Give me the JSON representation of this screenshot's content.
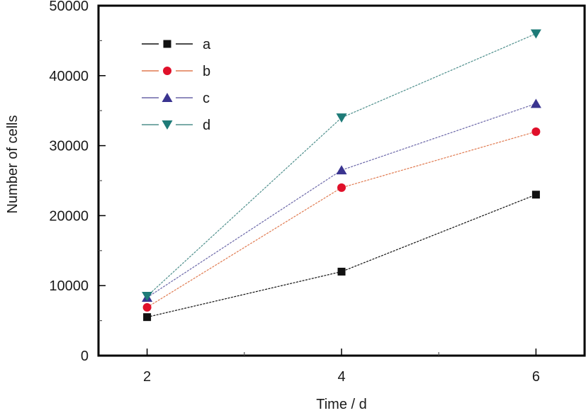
{
  "chart_data": {
    "type": "line",
    "title": "",
    "xlabel": "Time / d",
    "ylabel": "Number of cells",
    "x": [
      2,
      4,
      6
    ],
    "xlim": [
      1.5,
      6.5
    ],
    "ylim": [
      0,
      50000
    ],
    "x_ticks": [
      2,
      4,
      6
    ],
    "x_tick_labels": [
      "2",
      "4",
      "6"
    ],
    "x_minor_ticks": [
      3,
      5
    ],
    "y_ticks": [
      0,
      10000,
      20000,
      30000,
      40000,
      50000
    ],
    "y_tick_labels": [
      "0",
      "10000",
      "20000",
      "30000",
      "40000",
      "50000"
    ],
    "y_minor_ticks": [
      5000,
      15000,
      25000,
      35000,
      45000
    ],
    "grid": false,
    "legend_position": "top-left",
    "series": [
      {
        "name": "a",
        "values": [
          5500,
          12000,
          23000
        ],
        "color": "#111111",
        "marker": "square"
      },
      {
        "name": "b",
        "values": [
          6900,
          24000,
          32000
        ],
        "color": "#e0102a",
        "line_color": "#e07a50",
        "marker": "circle"
      },
      {
        "name": "c",
        "values": [
          8300,
          26500,
          36000
        ],
        "color": "#3a3490",
        "line_color": "#6b67a8",
        "marker": "triangle-up"
      },
      {
        "name": "d",
        "values": [
          8500,
          34000,
          46000
        ],
        "color": "#1e7b78",
        "line_color": "#4e8f8c",
        "marker": "triangle-down"
      }
    ]
  }
}
